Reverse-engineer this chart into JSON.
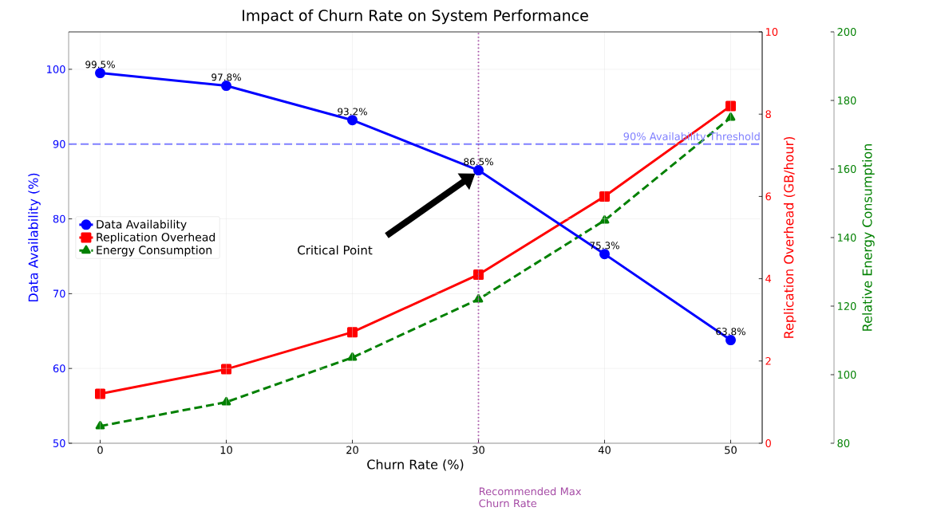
{
  "chart_data": {
    "type": "line",
    "title": "Impact of Churn Rate on System Performance",
    "xlabel": "Churn Rate (%)",
    "ylabel": "Data Availability (%)",
    "y2label": "Replication Overhead (GB/hour)",
    "y3label": "Relative Energy Consumption",
    "x": [
      0,
      10,
      20,
      30,
      40,
      50
    ],
    "series": [
      {
        "name": "Data Availability",
        "color": "#0000ff",
        "values": [
          99.5,
          97.8,
          93.2,
          86.5,
          75.3,
          63.8
        ],
        "value_labels": [
          "99.5%",
          "97.8%",
          "93.2%",
          "86.5%",
          "75.3%",
          "63.8%"
        ],
        "marker": "circle",
        "line_style": "solid"
      },
      {
        "name": "Replication Overhead",
        "color": "#ff0000",
        "values": [
          1.2,
          1.8,
          2.7,
          4.1,
          6.0,
          8.2
        ],
        "axis": "y2",
        "marker": "square",
        "line_style": "solid"
      },
      {
        "name": "Energy Consumption",
        "color": "#008000",
        "values": [
          85,
          92,
          105,
          122,
          145,
          175
        ],
        "axis": "y3",
        "marker": "triangle",
        "line_style": "dashed"
      }
    ],
    "xlim": [
      -2.5,
      52.5
    ],
    "xticks": [
      0,
      10,
      20,
      30,
      40,
      50
    ],
    "ylim": [
      50,
      105
    ],
    "yticks": [
      50,
      60,
      70,
      80,
      90,
      100
    ],
    "y2lim": [
      0,
      10
    ],
    "y2ticks": [
      0,
      2,
      4,
      6,
      8,
      10
    ],
    "y3lim": [
      80,
      200
    ],
    "y3ticks": [
      80,
      100,
      120,
      140,
      160,
      180,
      200
    ],
    "ref_lines": [
      {
        "axis": "y",
        "value": 90,
        "label": "90% Availability Threshold",
        "color": "#8080ff",
        "line_style": "dashed"
      },
      {
        "axis": "x",
        "value": 30,
        "label": "Recommended Max Churn Rate",
        "color": "#a64ca6",
        "line_style": "dotted"
      }
    ],
    "annotations": [
      "Critical Point"
    ],
    "grid": true,
    "legend": "left"
  }
}
